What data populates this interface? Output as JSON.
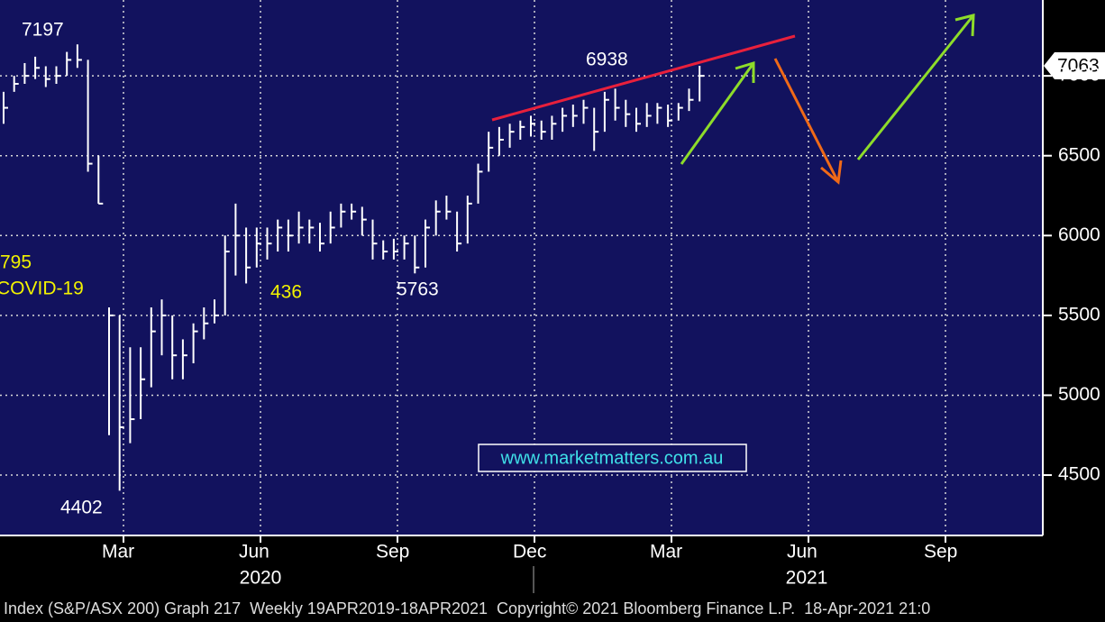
{
  "chart_data": {
    "type": "ohlc",
    "annotations": [
      "7197",
      "6938",
      "5763",
      "4402",
      "436",
      "795",
      "COVID-19"
    ],
    "price_tag": "7063",
    "watermark": "www.marketmatters.com.au",
    "footer": "Index (S&P/ASX 200) Graph 217  Weekly 19APR2019-18APR2021  Copyright© 2021 Bloomberg Finance L.P.  18-Apr-2021 21:0",
    "months": [
      "Mar",
      "Jun",
      "Sep",
      "Dec",
      "Mar",
      "Jun",
      "Sep"
    ],
    "years": [
      "2020",
      "2021"
    ],
    "color": "#ffffff",
    "ylim": [
      4122,
      7475
    ],
    "yticks": [
      4500,
      5000,
      5500,
      6000,
      6500,
      7000
    ],
    "grid": true,
    "close": [
      6800,
      6950,
      7000,
      7050,
      6980,
      7000,
      7100,
      7100,
      6450,
      6200,
      5500,
      4800,
      4850,
      5100,
      5400,
      5500,
      5250,
      5250,
      5400,
      5450,
      5500,
      5900,
      6000,
      5800,
      5950,
      5950,
      6050,
      6000,
      6050,
      6050,
      5950,
      6050,
      6150,
      6150,
      6100,
      5950,
      5900,
      5900,
      5950,
      5800,
      6050,
      6150,
      6150,
      5950,
      6200,
      6400,
      6550,
      6600,
      6650,
      6680,
      6700,
      6650,
      6700,
      6750,
      6750,
      6800,
      6650,
      6850,
      6800,
      6760,
      6700,
      6750,
      6800,
      6720,
      6800,
      6850,
      7000
    ],
    "high": [
      6900,
      7000,
      7080,
      7120,
      7060,
      7060,
      7150,
      7197,
      7100,
      6500,
      5550,
      5500,
      5300,
      5300,
      5550,
      5600,
      5500,
      5350,
      5450,
      5550,
      5600,
      6000,
      6200,
      6050,
      6050,
      6050,
      6100,
      6100,
      6150,
      6100,
      6080,
      6150,
      6200,
      6200,
      6180,
      6100,
      5970,
      5980,
      6000,
      6000,
      6100,
      6220,
      6250,
      6150,
      6250,
      6450,
      6650,
      6680,
      6700,
      6720,
      6750,
      6720,
      6750,
      6800,
      6820,
      6850,
      6800,
      6900,
      6920,
      6850,
      6800,
      6830,
      6830,
      6820,
      6830,
      6920,
      7063
    ],
    "low": [
      6700,
      6900,
      6950,
      6980,
      6930,
      6950,
      7000,
      7050,
      6400,
      6200,
      4750,
      4402,
      4700,
      4850,
      5050,
      5250,
      5100,
      5100,
      5200,
      5350,
      5450,
      5500,
      5750,
      5700,
      5800,
      5850,
      5900,
      5900,
      5950,
      5950,
      5900,
      5950,
      6050,
      6100,
      6000,
      5850,
      5850,
      5850,
      5850,
      5763,
      5800,
      6000,
      6100,
      5900,
      5950,
      6200,
      6400,
      6500,
      6550,
      6600,
      6620,
      6600,
      6600,
      6650,
      6680,
      6700,
      6530,
      6650,
      6720,
      6680,
      6650,
      6680,
      6700,
      6680,
      6720,
      6780,
      6840
    ]
  }
}
